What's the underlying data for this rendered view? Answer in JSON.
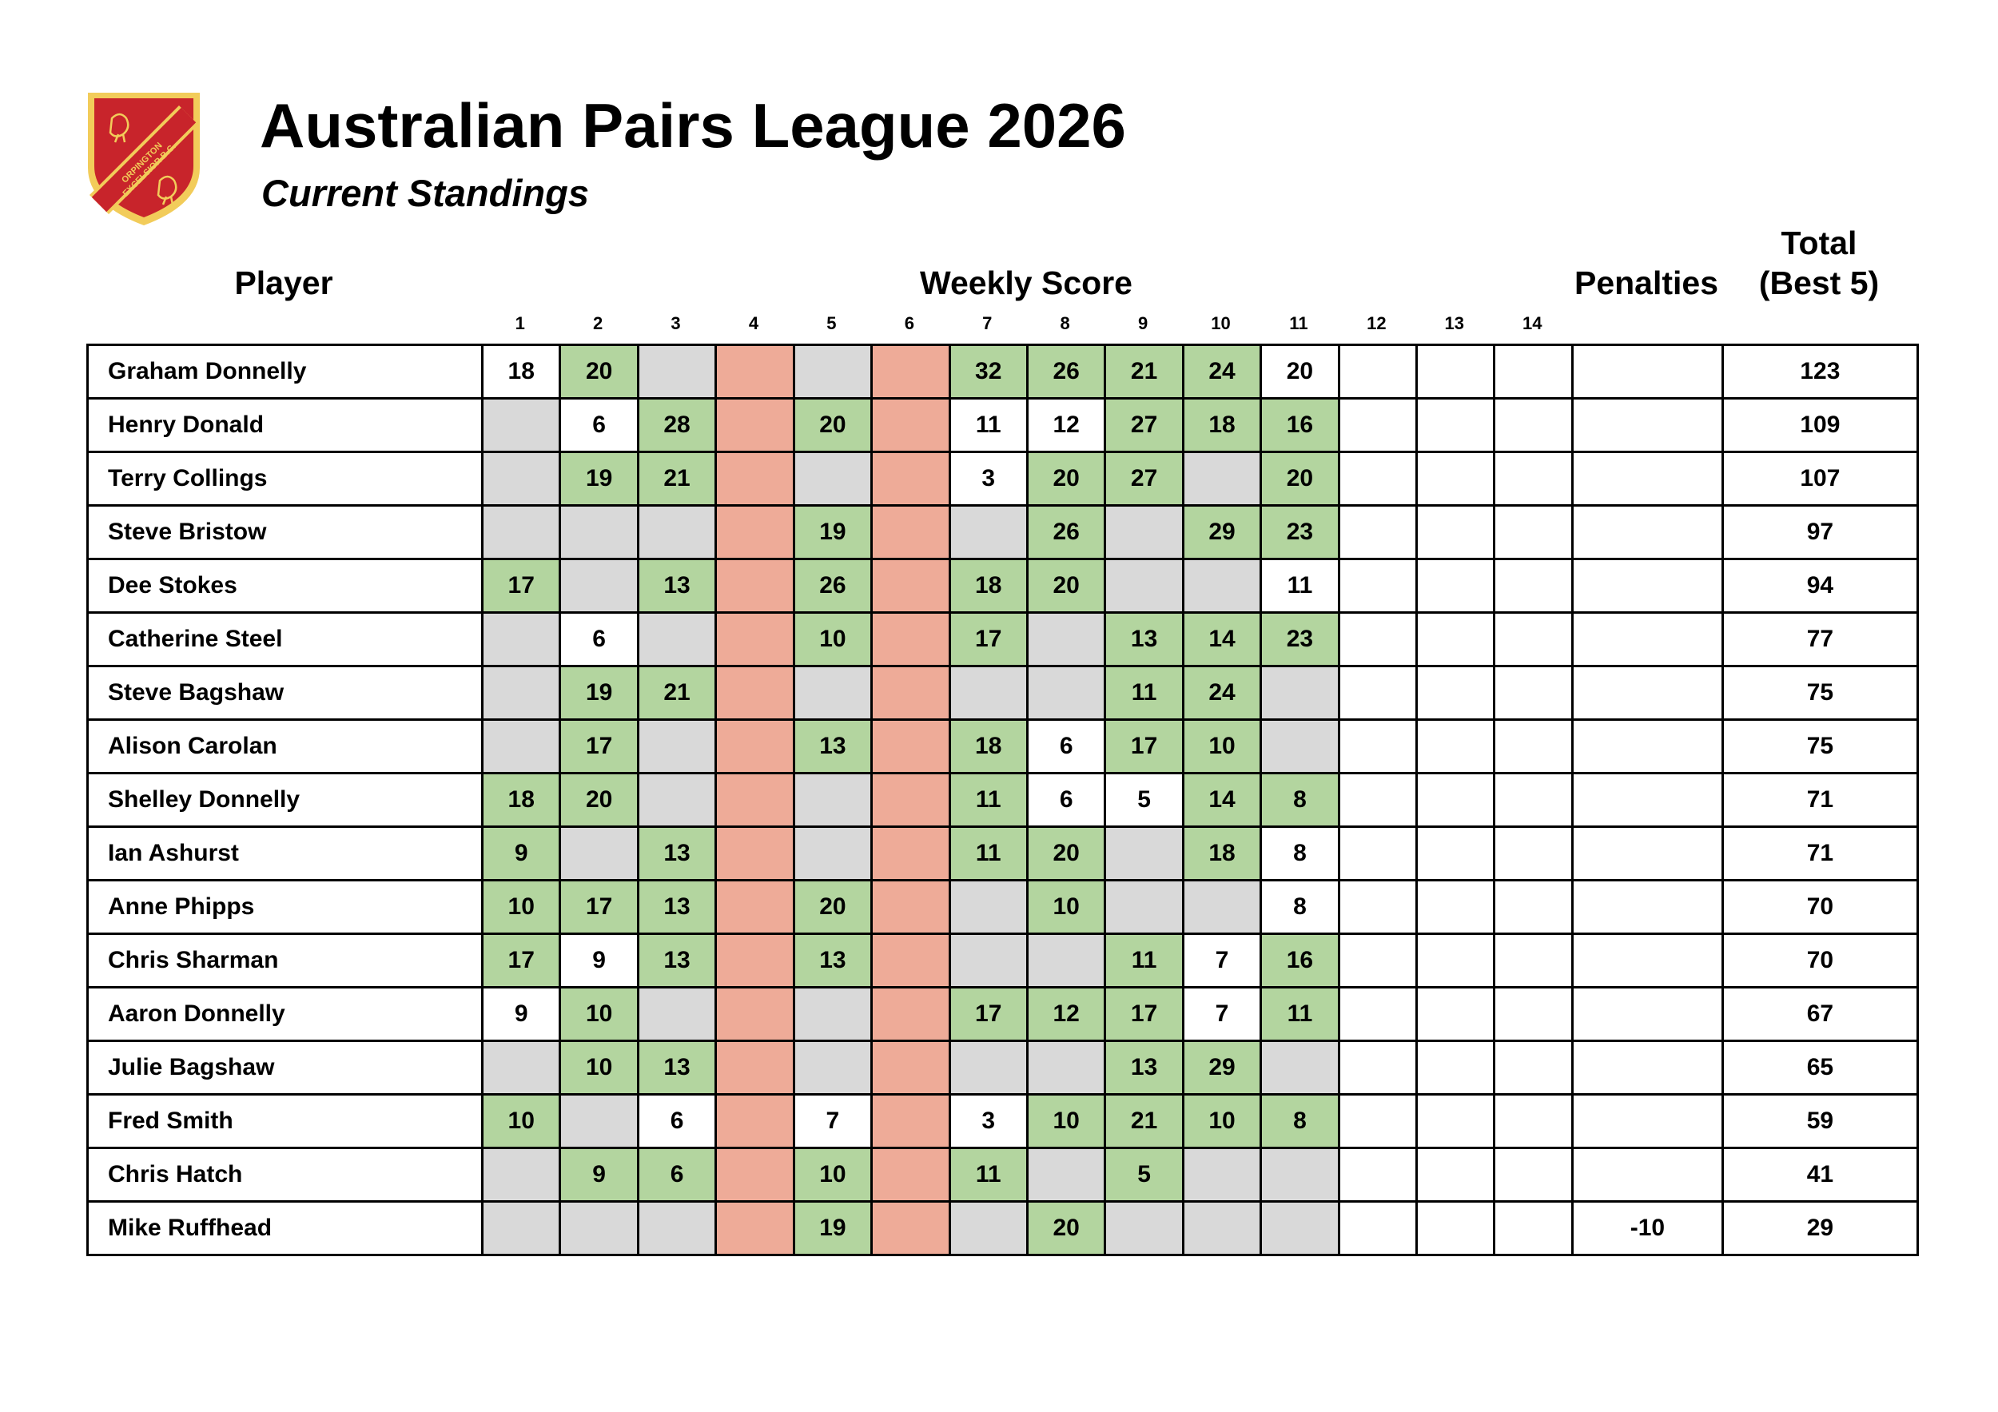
{
  "title": "Australian Pairs League 2026",
  "subtitle": "Current Standings",
  "logo": {
    "icon": "club-crest-icon",
    "text": "ORPINGTON EXCELSIOR B.C.",
    "colors": {
      "shield": "#c8242b",
      "border": "#f2cc5a"
    }
  },
  "headers": {
    "player": "Player",
    "weekly_score": "Weekly Score",
    "penalties": "Penalties",
    "total_line1": "Total",
    "total_line2": "(Best 5)"
  },
  "weeks": [
    "1",
    "2",
    "3",
    "4",
    "5",
    "6",
    "7",
    "8",
    "9",
    "10",
    "11",
    "12",
    "13",
    "14"
  ],
  "legend_colors": {
    "g": "#b3d59f",
    "s": "#d9d9d9",
    "r": "#eeab98",
    "w": "#ffffff"
  },
  "rows": [
    {
      "name": "Graham Donnelly",
      "penalty": "",
      "total": "123",
      "cells": [
        [
          "18",
          "w"
        ],
        [
          "20",
          "g"
        ],
        [
          "",
          "s"
        ],
        [
          "",
          "r"
        ],
        [
          "",
          "s"
        ],
        [
          "",
          "r"
        ],
        [
          "32",
          "g"
        ],
        [
          "26",
          "g"
        ],
        [
          "21",
          "g"
        ],
        [
          "24",
          "g"
        ],
        [
          "20",
          "w"
        ],
        [
          "",
          "w"
        ],
        [
          "",
          "w"
        ],
        [
          "",
          "w"
        ]
      ]
    },
    {
      "name": "Henry Donald",
      "penalty": "",
      "total": "109",
      "cells": [
        [
          "",
          "s"
        ],
        [
          "6",
          "w"
        ],
        [
          "28",
          "g"
        ],
        [
          "",
          "r"
        ],
        [
          "20",
          "g"
        ],
        [
          "",
          "r"
        ],
        [
          "11",
          "w"
        ],
        [
          "12",
          "w"
        ],
        [
          "27",
          "g"
        ],
        [
          "18",
          "g"
        ],
        [
          "16",
          "g"
        ],
        [
          "",
          "w"
        ],
        [
          "",
          "w"
        ],
        [
          "",
          "w"
        ]
      ]
    },
    {
      "name": "Terry Collings",
      "penalty": "",
      "total": "107",
      "cells": [
        [
          "",
          "s"
        ],
        [
          "19",
          "g"
        ],
        [
          "21",
          "g"
        ],
        [
          "",
          "r"
        ],
        [
          "",
          "s"
        ],
        [
          "",
          "r"
        ],
        [
          "3",
          "w"
        ],
        [
          "20",
          "g"
        ],
        [
          "27",
          "g"
        ],
        [
          "",
          "s"
        ],
        [
          "20",
          "g"
        ],
        [
          "",
          "w"
        ],
        [
          "",
          "w"
        ],
        [
          "",
          "w"
        ]
      ]
    },
    {
      "name": "Steve Bristow",
      "penalty": "",
      "total": "97",
      "cells": [
        [
          "",
          "s"
        ],
        [
          "",
          "s"
        ],
        [
          "",
          "s"
        ],
        [
          "",
          "r"
        ],
        [
          "19",
          "g"
        ],
        [
          "",
          "r"
        ],
        [
          "",
          "s"
        ],
        [
          "26",
          "g"
        ],
        [
          "",
          "s"
        ],
        [
          "29",
          "g"
        ],
        [
          "23",
          "g"
        ],
        [
          "",
          "w"
        ],
        [
          "",
          "w"
        ],
        [
          "",
          "w"
        ]
      ]
    },
    {
      "name": "Dee Stokes",
      "penalty": "",
      "total": "94",
      "cells": [
        [
          "17",
          "g"
        ],
        [
          "",
          "s"
        ],
        [
          "13",
          "g"
        ],
        [
          "",
          "r"
        ],
        [
          "26",
          "g"
        ],
        [
          "",
          "r"
        ],
        [
          "18",
          "g"
        ],
        [
          "20",
          "g"
        ],
        [
          "",
          "s"
        ],
        [
          "",
          "s"
        ],
        [
          "11",
          "w"
        ],
        [
          "",
          "w"
        ],
        [
          "",
          "w"
        ],
        [
          "",
          "w"
        ]
      ]
    },
    {
      "name": "Catherine Steel",
      "penalty": "",
      "total": "77",
      "cells": [
        [
          "",
          "s"
        ],
        [
          "6",
          "w"
        ],
        [
          "",
          "s"
        ],
        [
          "",
          "r"
        ],
        [
          "10",
          "g"
        ],
        [
          "",
          "r"
        ],
        [
          "17",
          "g"
        ],
        [
          "",
          "s"
        ],
        [
          "13",
          "g"
        ],
        [
          "14",
          "g"
        ],
        [
          "23",
          "g"
        ],
        [
          "",
          "w"
        ],
        [
          "",
          "w"
        ],
        [
          "",
          "w"
        ]
      ]
    },
    {
      "name": "Steve Bagshaw",
      "penalty": "",
      "total": "75",
      "cells": [
        [
          "",
          "s"
        ],
        [
          "19",
          "g"
        ],
        [
          "21",
          "g"
        ],
        [
          "",
          "r"
        ],
        [
          "",
          "s"
        ],
        [
          "",
          "r"
        ],
        [
          "",
          "s"
        ],
        [
          "",
          "s"
        ],
        [
          "11",
          "g"
        ],
        [
          "24",
          "g"
        ],
        [
          "",
          "s"
        ],
        [
          "",
          "w"
        ],
        [
          "",
          "w"
        ],
        [
          "",
          "w"
        ]
      ]
    },
    {
      "name": "Alison Carolan",
      "penalty": "",
      "total": "75",
      "cells": [
        [
          "",
          "s"
        ],
        [
          "17",
          "g"
        ],
        [
          "",
          "s"
        ],
        [
          "",
          "r"
        ],
        [
          "13",
          "g"
        ],
        [
          "",
          "r"
        ],
        [
          "18",
          "g"
        ],
        [
          "6",
          "w"
        ],
        [
          "17",
          "g"
        ],
        [
          "10",
          "g"
        ],
        [
          "",
          "s"
        ],
        [
          "",
          "w"
        ],
        [
          "",
          "w"
        ],
        [
          "",
          "w"
        ]
      ]
    },
    {
      "name": "Shelley Donnelly",
      "penalty": "",
      "total": "71",
      "cells": [
        [
          "18",
          "g"
        ],
        [
          "20",
          "g"
        ],
        [
          "",
          "s"
        ],
        [
          "",
          "r"
        ],
        [
          "",
          "s"
        ],
        [
          "",
          "r"
        ],
        [
          "11",
          "g"
        ],
        [
          "6",
          "w"
        ],
        [
          "5",
          "w"
        ],
        [
          "14",
          "g"
        ],
        [
          "8",
          "g"
        ],
        [
          "",
          "w"
        ],
        [
          "",
          "w"
        ],
        [
          "",
          "w"
        ]
      ]
    },
    {
      "name": "Ian Ashurst",
      "penalty": "",
      "total": "71",
      "cells": [
        [
          "9",
          "g"
        ],
        [
          "",
          "s"
        ],
        [
          "13",
          "g"
        ],
        [
          "",
          "r"
        ],
        [
          "",
          "s"
        ],
        [
          "",
          "r"
        ],
        [
          "11",
          "g"
        ],
        [
          "20",
          "g"
        ],
        [
          "",
          "s"
        ],
        [
          "18",
          "g"
        ],
        [
          "8",
          "w"
        ],
        [
          "",
          "w"
        ],
        [
          "",
          "w"
        ],
        [
          "",
          "w"
        ]
      ]
    },
    {
      "name": "Anne Phipps",
      "penalty": "",
      "total": "70",
      "cells": [
        [
          "10",
          "g"
        ],
        [
          "17",
          "g"
        ],
        [
          "13",
          "g"
        ],
        [
          "",
          "r"
        ],
        [
          "20",
          "g"
        ],
        [
          "",
          "r"
        ],
        [
          "",
          "s"
        ],
        [
          "10",
          "g"
        ],
        [
          "",
          "s"
        ],
        [
          "",
          "s"
        ],
        [
          "8",
          "w"
        ],
        [
          "",
          "w"
        ],
        [
          "",
          "w"
        ],
        [
          "",
          "w"
        ]
      ]
    },
    {
      "name": "Chris Sharman",
      "penalty": "",
      "total": "70",
      "cells": [
        [
          "17",
          "g"
        ],
        [
          "9",
          "w"
        ],
        [
          "13",
          "g"
        ],
        [
          "",
          "r"
        ],
        [
          "13",
          "g"
        ],
        [
          "",
          "r"
        ],
        [
          "",
          "s"
        ],
        [
          "",
          "s"
        ],
        [
          "11",
          "g"
        ],
        [
          "7",
          "w"
        ],
        [
          "16",
          "g"
        ],
        [
          "",
          "w"
        ],
        [
          "",
          "w"
        ],
        [
          "",
          "w"
        ]
      ]
    },
    {
      "name": "Aaron Donnelly",
      "penalty": "",
      "total": "67",
      "cells": [
        [
          "9",
          "w"
        ],
        [
          "10",
          "g"
        ],
        [
          "",
          "s"
        ],
        [
          "",
          "r"
        ],
        [
          "",
          "s"
        ],
        [
          "",
          "r"
        ],
        [
          "17",
          "g"
        ],
        [
          "12",
          "g"
        ],
        [
          "17",
          "g"
        ],
        [
          "7",
          "w"
        ],
        [
          "11",
          "g"
        ],
        [
          "",
          "w"
        ],
        [
          "",
          "w"
        ],
        [
          "",
          "w"
        ]
      ]
    },
    {
      "name": "Julie Bagshaw",
      "penalty": "",
      "total": "65",
      "cells": [
        [
          "",
          "s"
        ],
        [
          "10",
          "g"
        ],
        [
          "13",
          "g"
        ],
        [
          "",
          "r"
        ],
        [
          "",
          "s"
        ],
        [
          "",
          "r"
        ],
        [
          "",
          "s"
        ],
        [
          "",
          "s"
        ],
        [
          "13",
          "g"
        ],
        [
          "29",
          "g"
        ],
        [
          "",
          "s"
        ],
        [
          "",
          "w"
        ],
        [
          "",
          "w"
        ],
        [
          "",
          "w"
        ]
      ]
    },
    {
      "name": "Fred Smith",
      "penalty": "",
      "total": "59",
      "cells": [
        [
          "10",
          "g"
        ],
        [
          "",
          "s"
        ],
        [
          "6",
          "w"
        ],
        [
          "",
          "r"
        ],
        [
          "7",
          "w"
        ],
        [
          "",
          "r"
        ],
        [
          "3",
          "w"
        ],
        [
          "10",
          "g"
        ],
        [
          "21",
          "g"
        ],
        [
          "10",
          "g"
        ],
        [
          "8",
          "g"
        ],
        [
          "",
          "w"
        ],
        [
          "",
          "w"
        ],
        [
          "",
          "w"
        ]
      ]
    },
    {
      "name": "Chris Hatch",
      "penalty": "",
      "total": "41",
      "cells": [
        [
          "",
          "s"
        ],
        [
          "9",
          "g"
        ],
        [
          "6",
          "g"
        ],
        [
          "",
          "r"
        ],
        [
          "10",
          "g"
        ],
        [
          "",
          "r"
        ],
        [
          "11",
          "g"
        ],
        [
          "",
          "s"
        ],
        [
          "5",
          "g"
        ],
        [
          "",
          "s"
        ],
        [
          "",
          "s"
        ],
        [
          "",
          "w"
        ],
        [
          "",
          "w"
        ],
        [
          "",
          "w"
        ]
      ]
    },
    {
      "name": "Mike Ruffhead",
      "penalty": "-10",
      "total": "29",
      "cells": [
        [
          "",
          "s"
        ],
        [
          "",
          "s"
        ],
        [
          "",
          "s"
        ],
        [
          "",
          "r"
        ],
        [
          "19",
          "g"
        ],
        [
          "",
          "r"
        ],
        [
          "",
          "s"
        ],
        [
          "20",
          "g"
        ],
        [
          "",
          "s"
        ],
        [
          "",
          "s"
        ],
        [
          "",
          "s"
        ],
        [
          "",
          "w"
        ],
        [
          "",
          "w"
        ],
        [
          "",
          "w"
        ]
      ]
    }
  ]
}
